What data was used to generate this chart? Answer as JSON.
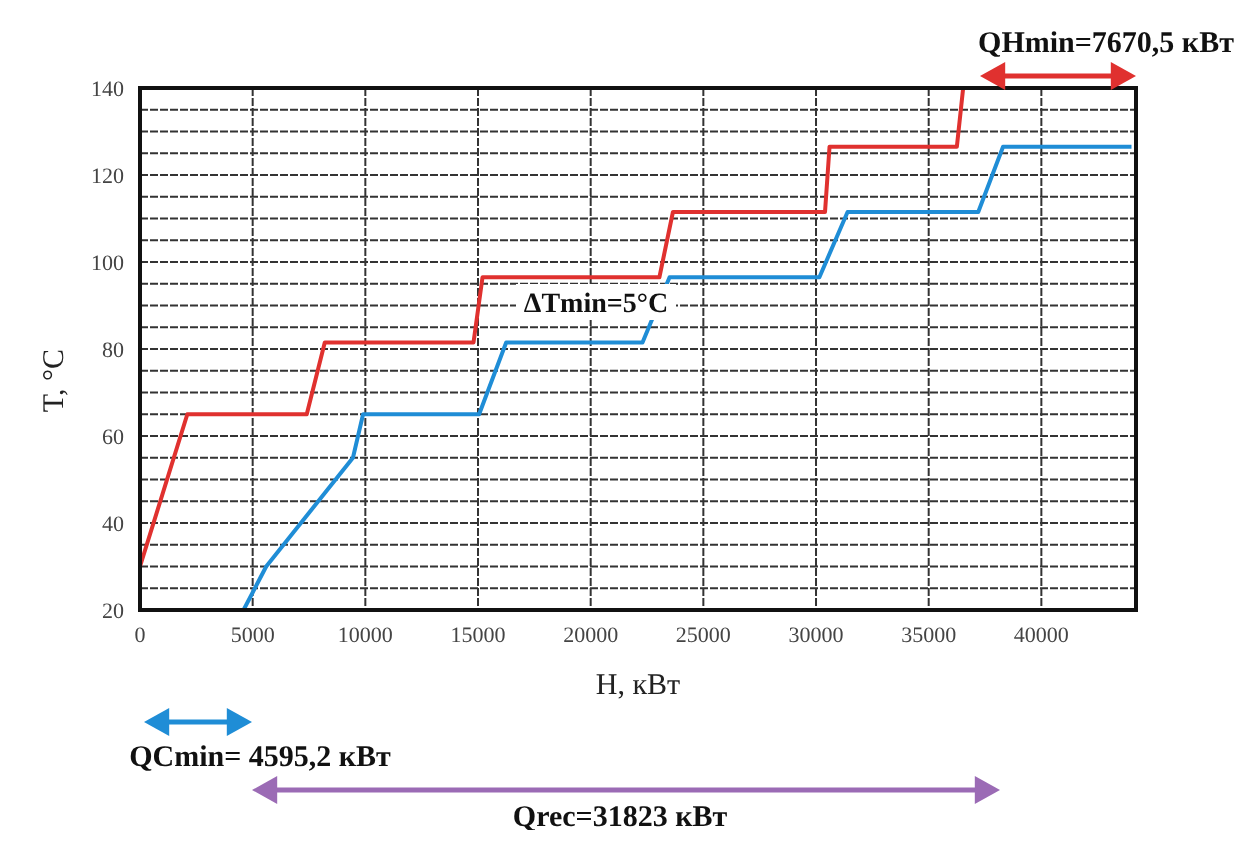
{
  "chart_data": {
    "type": "line",
    "xlabel": "H, кВт",
    "ylabel": "T, °C",
    "xlim": [
      0,
      44200
    ],
    "xticks": [
      0,
      5000,
      10000,
      15000,
      20000,
      25000,
      30000,
      35000,
      40000
    ],
    "ylim": [
      20,
      140
    ],
    "yticks": [
      20,
      {
        "value": 25,
        "label": null
      },
      {
        "value": 30,
        "label": null
      },
      {
        "value": 35,
        "label": null
      },
      40,
      {
        "value": 45,
        "label": null
      },
      {
        "value": 50,
        "label": null
      },
      {
        "value": 55,
        "label": null
      },
      60,
      {
        "value": 65,
        "label": null
      },
      {
        "value": 70,
        "label": null
      },
      {
        "value": 75,
        "label": null
      },
      80,
      {
        "value": 85,
        "label": null
      },
      {
        "value": 90,
        "label": null
      },
      {
        "value": 95,
        "label": null
      },
      100,
      {
        "value": 105,
        "label": null
      },
      {
        "value": 110,
        "label": null
      },
      {
        "value": 115,
        "label": null
      },
      120,
      {
        "value": 125,
        "label": null
      },
      {
        "value": 130,
        "label": null
      },
      {
        "value": 135,
        "label": null
      },
      140
    ],
    "grid": true,
    "marker": "none",
    "line_style": "solid",
    "series": [
      {
        "color": "#e0312f",
        "x": [
          0,
          2100,
          7400,
          8200,
          14800,
          15200,
          23050,
          23650,
          30400,
          30600,
          36250,
          36530
        ],
        "values": [
          30,
          65,
          65,
          81.5,
          81.5,
          96.5,
          96.5,
          111.5,
          111.5,
          126.5,
          126.5,
          140
        ]
      },
      {
        "color": "#1f8dd6",
        "x": [
          4595,
          5600,
          9450,
          9900,
          15050,
          16250,
          22300,
          23500,
          30150,
          31400,
          37200,
          38300,
          44000
        ],
        "values": [
          20,
          30,
          55,
          65,
          65,
          81.5,
          81.5,
          96.5,
          96.5,
          111.5,
          111.5,
          126.5,
          126.5
        ]
      }
    ],
    "annotations": [
      "QHmin=7670,5 кВт",
      "ΔTmin=5°C",
      "QCmin= 4595,2 кВт",
      "Qrec=31823 кВт"
    ]
  }
}
